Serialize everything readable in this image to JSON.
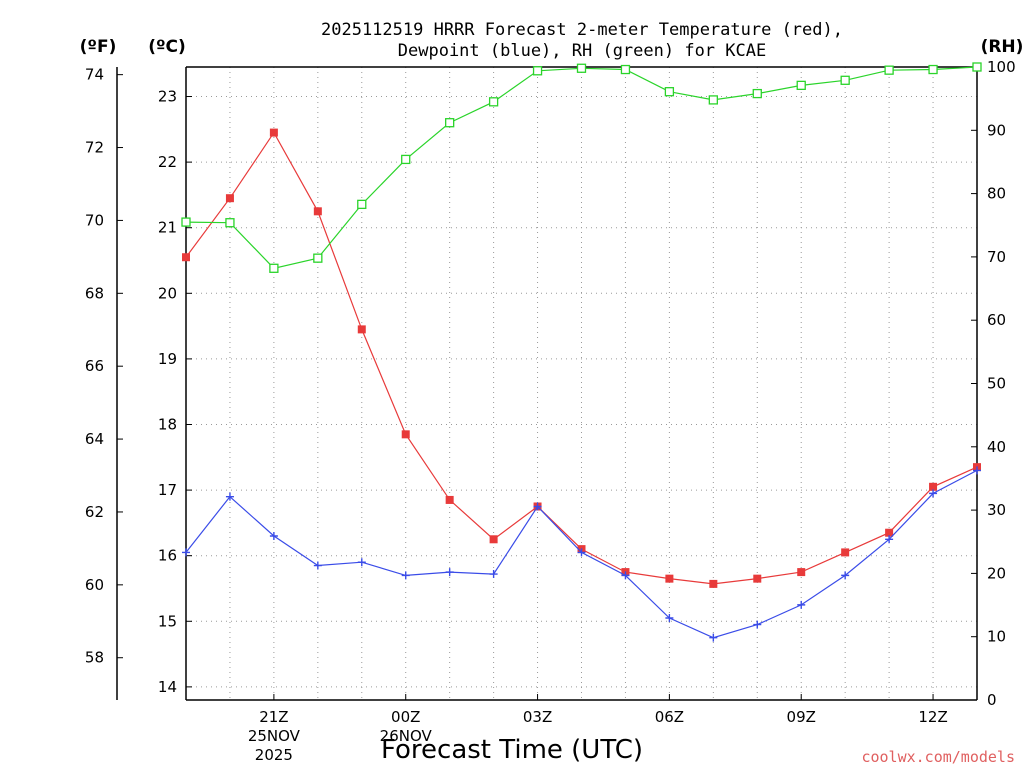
{
  "title": {
    "line1": "2025112519 HRRR Forecast 2-meter Temperature (red),",
    "line2": "Dewpoint (blue), RH (green) for KCAE"
  },
  "axes": {
    "f_unit": "(ºF)",
    "c_unit": "(ºC)",
    "rh_unit": "(RH)",
    "f_ticks": [
      "74",
      "72",
      "70",
      "68",
      "66",
      "64",
      "62",
      "60",
      "58"
    ],
    "c_ticks": [
      "23",
      "22",
      "21",
      "20",
      "19",
      "18",
      "17",
      "16",
      "15",
      "14"
    ],
    "rh_ticks": [
      "100",
      "90",
      "80",
      "70",
      "60",
      "50",
      "40",
      "30",
      "20",
      "10",
      "0"
    ],
    "x_ticks": [
      "21Z",
      "00Z",
      "03Z",
      "06Z",
      "09Z",
      "12Z"
    ],
    "x_sub_line2": [
      "25NOV",
      "26NOV"
    ],
    "x_sub_line3": [
      "2025"
    ],
    "xlabel": "Forecast Time (UTC)"
  },
  "credit": "coolwx.com/models",
  "colors": {
    "temperature": "#e83a3a",
    "dewpoint": "#3a4ce8",
    "rh": "#2ad42a",
    "grid": "#9a9a9a"
  },
  "chart_data": {
    "type": "line",
    "title": "2025112519 HRRR Forecast 2-meter Temperature (red), Dewpoint (blue), RH (green) for KCAE",
    "xlabel": "Forecast Time (UTC)",
    "ylabel": "Temperature (ºC)",
    "x": [
      "19Z",
      "20Z",
      "21Z",
      "22Z",
      "23Z",
      "00Z",
      "01Z",
      "02Z",
      "03Z",
      "04Z",
      "05Z",
      "06Z",
      "07Z",
      "08Z",
      "09Z",
      "10Z",
      "11Z",
      "12Z",
      "13Z"
    ],
    "ylim_c": [
      13.8,
      23.45
    ],
    "ylim_rh": [
      0,
      100
    ],
    "series": [
      {
        "name": "2-meter Temperature (ºC)",
        "axis": "c",
        "values": [
          20.55,
          21.45,
          22.45,
          21.25,
          19.45,
          17.85,
          16.85,
          16.25,
          16.75,
          16.1,
          15.75,
          15.65,
          15.57,
          15.65,
          15.75,
          16.05,
          16.35,
          17.05,
          17.35
        ]
      },
      {
        "name": "Dewpoint (ºC)",
        "axis": "c",
        "values": [
          16.05,
          16.9,
          16.3,
          15.85,
          15.9,
          15.7,
          15.75,
          15.72,
          16.75,
          16.05,
          15.7,
          15.05,
          14.75,
          14.95,
          15.25,
          15.7,
          16.25,
          16.95,
          17.3
        ]
      },
      {
        "name": "RH (%)",
        "axis": "rh",
        "values": [
          75.5,
          75.4,
          68.2,
          69.8,
          78.3,
          85.4,
          91.2,
          94.5,
          99.4,
          99.8,
          99.6,
          96.1,
          94.8,
          95.8,
          97.1,
          97.9,
          99.5,
          99.6,
          100
        ]
      }
    ]
  }
}
